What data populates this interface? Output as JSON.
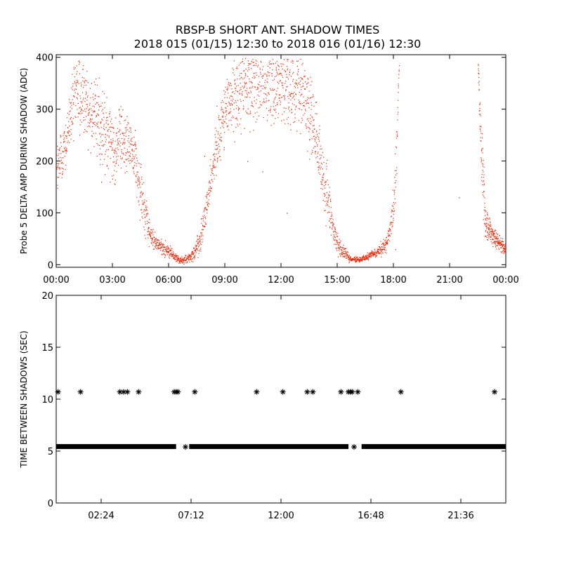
{
  "title": {
    "line1": "RBSP-B SHORT ANT. SHADOW TIMES",
    "line2": "2018 015 (01/15) 12:30 to 2018 016 (01/16) 12:30"
  },
  "colors": {
    "points": "#ee2200",
    "axis": "#000000",
    "markers": "#000000"
  },
  "chart_data": [
    {
      "type": "scatter",
      "name": "delta-amp",
      "ylabel": "Probe 5 DELTA AMP DURING SHADOW (ADC)",
      "xlim": [
        0,
        24
      ],
      "ylim": [
        -5,
        405
      ],
      "xticks": [
        0,
        3,
        6,
        9,
        12,
        15,
        18,
        21,
        24
      ],
      "xtick_labels": [
        "00:00",
        "03:00",
        "06:00",
        "09:00",
        "12:00",
        "15:00",
        "18:00",
        "21:00",
        "00:00"
      ],
      "yticks": [
        0,
        100,
        200,
        300,
        400
      ],
      "ytick_labels": [
        "0",
        "100",
        "200",
        "300",
        "400"
      ],
      "envelope": [
        [
          0.0,
          180,
          60
        ],
        [
          0.5,
          230,
          50
        ],
        [
          1.0,
          330,
          90
        ],
        [
          1.5,
          320,
          70
        ],
        [
          2.0,
          290,
          80
        ],
        [
          2.5,
          255,
          90
        ],
        [
          3.0,
          235,
          80
        ],
        [
          3.5,
          240,
          70
        ],
        [
          4.0,
          230,
          50
        ],
        [
          4.3,
          180,
          60
        ],
        [
          4.6,
          130,
          60
        ],
        [
          5.0,
          55,
          25
        ],
        [
          5.5,
          38,
          15
        ],
        [
          6.0,
          25,
          15
        ],
        [
          6.6,
          8,
          6
        ],
        [
          7.2,
          15,
          10
        ],
        [
          7.7,
          50,
          30
        ],
        [
          8.0,
          110,
          40
        ],
        [
          8.4,
          200,
          60
        ],
        [
          8.8,
          280,
          60
        ],
        [
          9.5,
          330,
          80
        ],
        [
          10.5,
          355,
          90
        ],
        [
          11.5,
          355,
          90
        ],
        [
          12.5,
          345,
          90
        ],
        [
          13.3,
          325,
          90
        ],
        [
          13.7,
          270,
          90
        ],
        [
          14.0,
          210,
          60
        ],
        [
          14.4,
          140,
          60
        ],
        [
          14.8,
          60,
          30
        ],
        [
          15.2,
          30,
          20
        ],
        [
          15.7,
          10,
          6
        ],
        [
          16.3,
          12,
          6
        ],
        [
          17.0,
          22,
          10
        ],
        [
          17.6,
          40,
          15
        ],
        [
          17.9,
          80,
          30
        ],
        [
          18.1,
          160,
          80
        ],
        [
          18.3,
          400,
          10
        ]
      ],
      "envelope2": [
        [
          22.5,
          390,
          30
        ],
        [
          22.7,
          200,
          70
        ],
        [
          22.9,
          80,
          40
        ],
        [
          23.3,
          55,
          20
        ],
        [
          23.7,
          40,
          15
        ],
        [
          24.0,
          30,
          10
        ]
      ]
    },
    {
      "type": "scatter",
      "name": "time-between-shadows",
      "ylabel": "TIME BETWEEN SHADOWS (SEC)",
      "xlim": [
        0,
        24
      ],
      "ylim": [
        0,
        20
      ],
      "xticks": [
        2.4,
        7.2,
        12.0,
        16.8,
        21.6
      ],
      "xtick_labels": [
        "02:24",
        "07:12",
        "12:00",
        "16:48",
        "21:36"
      ],
      "yticks": [
        0,
        5,
        10,
        15,
        20
      ],
      "ytick_labels": [
        "0",
        "5",
        "10",
        "15",
        "20"
      ],
      "baseline_value": 5.4,
      "baseline_gaps": [
        [
          6.4,
          7.1
        ],
        [
          15.6,
          16.3
        ]
      ],
      "baseline_extra_markers": [
        6.9,
        15.9
      ],
      "high_markers": [
        0.1,
        1.3,
        3.4,
        3.6,
        3.8,
        4.4,
        6.3,
        6.4,
        6.5,
        7.4,
        10.7,
        12.1,
        13.4,
        13.7,
        15.2,
        15.6,
        15.7,
        15.8,
        16.1,
        18.4,
        23.4
      ],
      "high_value": 10.7
    }
  ]
}
